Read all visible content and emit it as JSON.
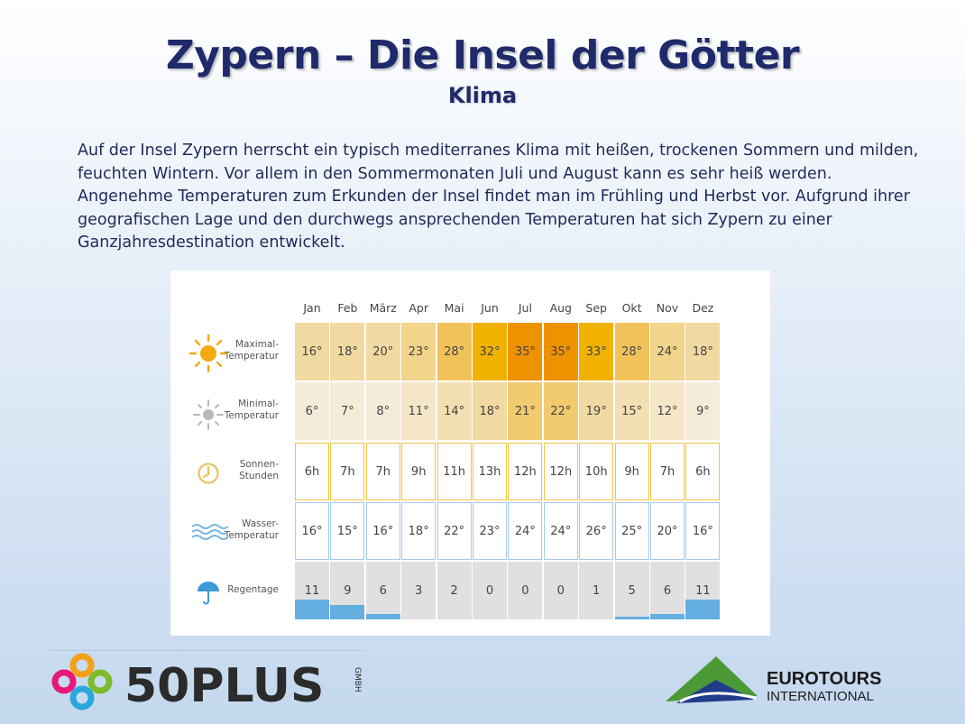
{
  "slide": {
    "title": "Zypern – Die Insel der Götter",
    "subtitle": "Klima",
    "intro": "Auf der Insel Zypern herrscht ein typisch mediterranes Klima mit heißen, trockenen Sommern und milden, feuchten Wintern. Vor allem in den Sommermonaten Juli und August kann es sehr heiß werden. Angenehme Temperaturen zum Erkunden der Insel findet man im Frühling und Herbst vor. Aufgrund ihrer geografischen Lage und den durchwegs ansprechenden Temperaturen hat sich Zypern zu einer Ganzjahresdestination entwickelt."
  },
  "climate": {
    "months": [
      "Jan",
      "Feb",
      "März",
      "Apr",
      "Mai",
      "Jun",
      "Jul",
      "Aug",
      "Sep",
      "Okt",
      "Nov",
      "Dez"
    ],
    "rows": [
      {
        "label": "Maximal-Temperatur",
        "icon": "sun-icon",
        "values": [
          "16°",
          "18°",
          "20°",
          "23°",
          "28°",
          "32°",
          "35°",
          "35°",
          "33°",
          "28°",
          "24°",
          "18°"
        ],
        "colors": [
          "#f1d9a2",
          "#f1d9a2",
          "#f1d9a2",
          "#f2d48a",
          "#f2c25a",
          "#f0b100",
          "#ef9200",
          "#ef9200",
          "#f0b100",
          "#f2c25a",
          "#f2d48a",
          "#f1d9a2"
        ]
      },
      {
        "label": "Minimal-Temperatur",
        "icon": "gray-sun-icon",
        "values": [
          "6°",
          "7°",
          "8°",
          "11°",
          "14°",
          "18°",
          "21°",
          "22°",
          "19°",
          "15°",
          "12°",
          "9°"
        ],
        "colors": [
          "#f5ebd9",
          "#f5ebd9",
          "#f5ebd9",
          "#f5e6c8",
          "#f3dfb2",
          "#f1d9a2",
          "#f2cb70",
          "#f2cb70",
          "#f1d9a2",
          "#f3dfb2",
          "#f5e6c8",
          "#f5ebd9"
        ]
      },
      {
        "label": "Sonnen-Stunden",
        "icon": "clock-icon",
        "values": [
          "6h",
          "7h",
          "7h",
          "9h",
          "11h",
          "13h",
          "12h",
          "12h",
          "10h",
          "9h",
          "7h",
          "6h"
        ]
      },
      {
        "label": "Wasser-Temperatur",
        "icon": "waves-icon",
        "values": [
          "16°",
          "15°",
          "16°",
          "18°",
          "22°",
          "23°",
          "24°",
          "24°",
          "26°",
          "25°",
          "20°",
          "16°"
        ]
      },
      {
        "label": "Regentage",
        "icon": "umbrella-icon",
        "values": [
          "11",
          "9",
          "6",
          "3",
          "2",
          "0",
          "0",
          "0",
          "1",
          "5",
          "6",
          "11"
        ]
      }
    ],
    "rain_days": [
      11,
      9,
      6,
      3,
      2,
      0,
      0,
      0,
      1,
      5,
      6,
      11
    ]
  },
  "logos": {
    "left": "50PLUS",
    "left_suffix": "GMBH",
    "right_line1": "EUROTOURS",
    "right_line2": "INTERNATIONAL"
  }
}
